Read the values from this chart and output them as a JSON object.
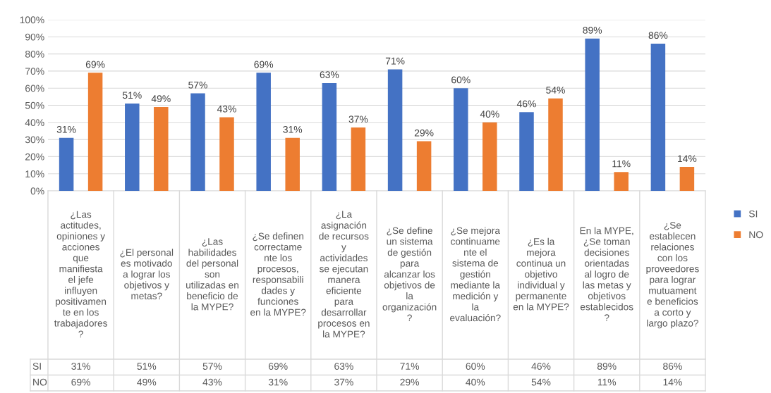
{
  "chart_data": {
    "type": "bar",
    "categories": [
      "¿Las\nactitudes,\nopiniones y\nacciones\nque\nmanifiesta\nel jefe\ninfluyen\npositivamen\nte en los\ntrabajadores\n?",
      "¿El personal\nes motivado\na lograr los\nobjetivos y\nmetas?",
      "¿Las\nhabilidades\ndel personal\nson\nutilizadas en\nbeneficio de\nla MYPE?",
      "¿Se definen\ncorrectame\nnte los\nprocesos,\nresponsabili\ndades y\nfunciones\nen la MYPE?",
      "¿La\nasignación\nde recursos\ny\nactividades\nse ejecutan\nmanera\neficiente\npara\ndesarrollar\nprocesos en\nla MYPE?",
      "¿Se define\nun sistema\nde gestión\npara\nalcanzar los\nobjetivos de\nla\norganización\n?",
      "¿Se mejora\ncontinuame\nnte el\nsistema de\ngestión\nmediante la\nmedición y\nla\nevaluación?",
      "¿Es la\nmejora\ncontinua un\nobjetivo\nindividual y\npermanente\nen la MYPE?",
      "En la MYPE,\n¿Se toman\ndecisiones\norientadas\nal logro de\nlas metas y\nobjetivos\nestablecidos\n?",
      "¿Se\nestablecen\nrelaciones\ncon los\nproveedores\npara lograr\nmutuament\ne beneficios\na corto y\nlargo plazo?"
    ],
    "series": [
      {
        "name": "SI",
        "color": "#4472c4",
        "values": [
          31,
          51,
          57,
          69,
          63,
          71,
          60,
          46,
          89,
          86
        ],
        "value_labels": [
          "31%",
          "51%",
          "57%",
          "69%",
          "63%",
          "71%",
          "60%",
          "46%",
          "89%",
          "86%"
        ]
      },
      {
        "name": "NO",
        "color": "#ed7d31",
        "values": [
          69,
          49,
          43,
          31,
          37,
          29,
          40,
          54,
          11,
          14
        ],
        "value_labels": [
          "69%",
          "49%",
          "43%",
          "31%",
          "37%",
          "29%",
          "40%",
          "54%",
          "11%",
          "14%"
        ]
      }
    ],
    "ylim": [
      0,
      100
    ],
    "yticks": [
      {
        "value": 0,
        "label": "0%"
      },
      {
        "value": 10,
        "label": "10%"
      },
      {
        "value": 20,
        "label": "20%"
      },
      {
        "value": 30,
        "label": "30%"
      },
      {
        "value": 40,
        "label": "40%"
      },
      {
        "value": 50,
        "label": "50%"
      },
      {
        "value": 60,
        "label": "60%"
      },
      {
        "value": 70,
        "label": "70%"
      },
      {
        "value": 80,
        "label": "80%"
      },
      {
        "value": 90,
        "label": "90%"
      },
      {
        "value": 100,
        "label": "100%"
      }
    ],
    "grid": "y",
    "legend": "right"
  }
}
